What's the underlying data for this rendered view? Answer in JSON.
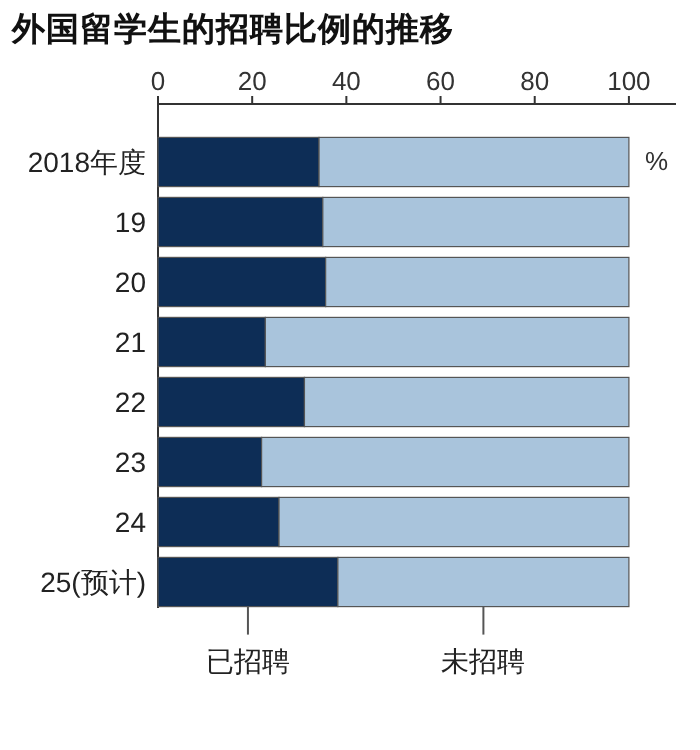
{
  "chart_data": {
    "type": "bar",
    "orientation": "horizontal",
    "stacked": true,
    "title": "外国留学生的招聘比例的推移",
    "categories": [
      "2018年度",
      "19",
      "20",
      "21",
      "22",
      "23",
      "24",
      "25(预计)"
    ],
    "series": [
      {
        "name": "已招聘",
        "color": "#0d2d56",
        "values": [
          34.2,
          35.0,
          35.6,
          22.8,
          31.1,
          22.0,
          25.7,
          38.2
        ]
      },
      {
        "name": "未招聘",
        "color": "#a9c4dc",
        "values": [
          65.8,
          65.0,
          64.4,
          77.2,
          68.9,
          78.0,
          74.3,
          61.8
        ]
      }
    ],
    "xlim": [
      0,
      110
    ],
    "xticks": [
      0,
      20,
      40,
      60,
      80,
      100
    ],
    "annotations": [
      "%"
    ],
    "legend": "bottom",
    "grid": false
  }
}
